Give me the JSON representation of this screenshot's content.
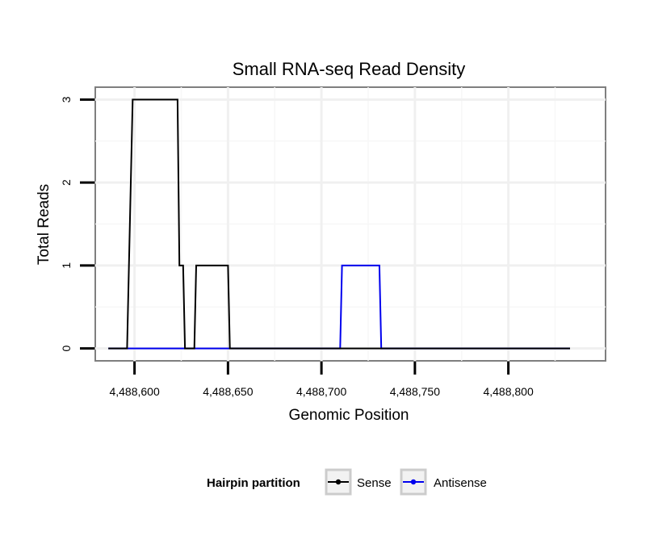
{
  "chart_data": {
    "type": "line",
    "title": "Small RNA-seq Read Density",
    "xlabel": "Genomic Position",
    "ylabel": "Total Reads",
    "xlim": [
      4488579,
      4488852
    ],
    "ylim": [
      -0.15,
      3.15
    ],
    "x_ticks": [
      4488600,
      4488650,
      4488700,
      4488750,
      4488800
    ],
    "x_tick_labels": [
      "4,488,600",
      "4,488,650",
      "4,488,700",
      "4,488,750",
      "4,488,800"
    ],
    "y_ticks": [
      0,
      1,
      2,
      3
    ],
    "y_tick_labels": [
      "0",
      "1",
      "2",
      "3"
    ],
    "grid": true,
    "legend": {
      "title": "Hairpin partition",
      "position": "bottom",
      "entries": [
        "Sense",
        "Antisense"
      ]
    },
    "series": [
      {
        "name": "Sense",
        "color": "#000000",
        "x": [
          4488586,
          4488596,
          4488599,
          4488623,
          4488624,
          4488626,
          4488627,
          4488632,
          4488633,
          4488650,
          4488651,
          4488833
        ],
        "y": [
          0,
          0,
          3,
          3,
          1,
          1,
          0,
          0,
          1,
          1,
          0,
          0
        ]
      },
      {
        "name": "Antisense",
        "color": "#0000ee",
        "x": [
          4488586,
          4488710,
          4488711,
          4488731,
          4488732,
          4488833
        ],
        "y": [
          0,
          0,
          1,
          1,
          0,
          0
        ]
      }
    ]
  }
}
